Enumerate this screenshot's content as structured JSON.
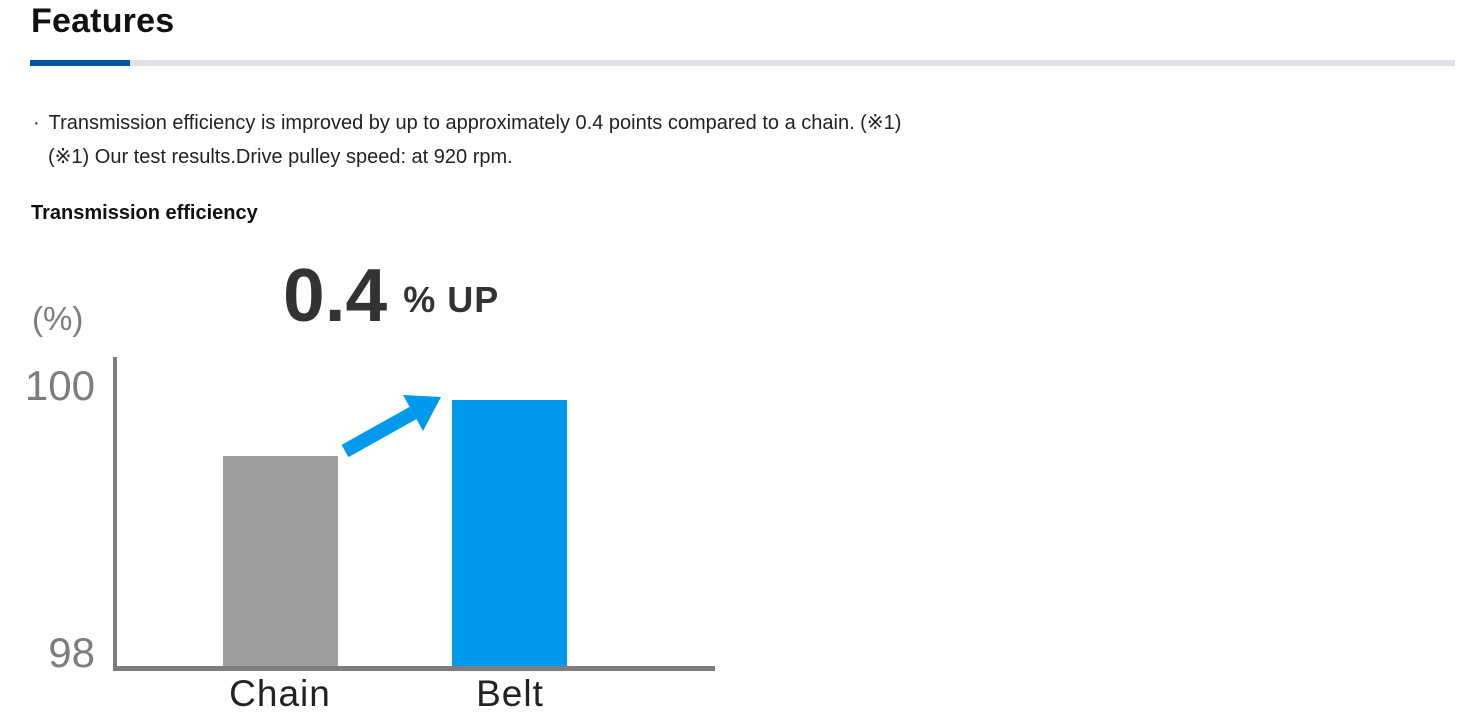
{
  "header": {
    "title": "Features"
  },
  "intro": {
    "bullet": "·",
    "line1": "Transmission efficiency is improved by up to approximately 0.4 points compared to a chain. (※1)",
    "note": "(※1) Our test results.Drive pulley speed: at 920 rpm."
  },
  "chart_data": {
    "type": "bar",
    "title": "Transmission efficiency",
    "ylabel": "(%)",
    "categories": [
      "Chain",
      "Belt"
    ],
    "values": [
      99.5,
      99.9
    ],
    "bar_colors": [
      "#9E9E9E",
      "#0099EB"
    ],
    "ylim": [
      98,
      100
    ],
    "yticks": [
      "100",
      "98"
    ],
    "grid": false,
    "legend": false,
    "annotation": {
      "value": "0.4",
      "suffix": "% UP"
    }
  },
  "colors": {
    "accent_blue": "#0056A6",
    "divider_gray": "#E0E1E6",
    "bar_gray": "#9E9E9E",
    "bar_blue": "#0099EB",
    "axis_gray": "#7D7D7D",
    "annotation_text": "#333333"
  }
}
